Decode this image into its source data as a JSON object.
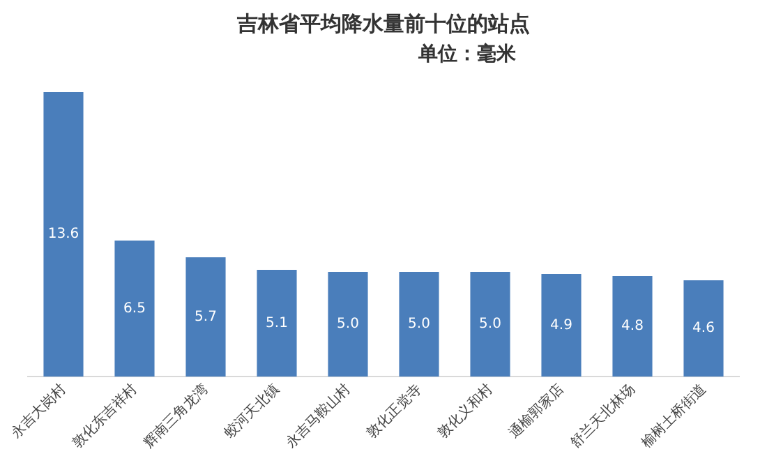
{
  "chart_data": {
    "type": "bar",
    "title": "吉林省平均降水量前十位的站点",
    "subtitle": "单位：毫米",
    "categories": [
      "永吉大岗村",
      "敦化东吉祥村",
      "辉南三角龙湾",
      "蛟河天北镇",
      "永吉马鞍山村",
      "敦化正觉寺",
      "敦化义和村",
      "通榆郭家店",
      "舒兰天北林场",
      "榆树土桥街道"
    ],
    "values": [
      13.6,
      6.5,
      5.7,
      5.1,
      5.0,
      5.0,
      5.0,
      4.9,
      4.8,
      4.6
    ],
    "color": "#4a7ebb",
    "value_labels": [
      "13.6",
      "6.5",
      "5.7",
      "5.1",
      "5.0",
      "5.0",
      "5.0",
      "4.9",
      "4.8",
      "4.6"
    ],
    "grid": false,
    "legend": false
  }
}
